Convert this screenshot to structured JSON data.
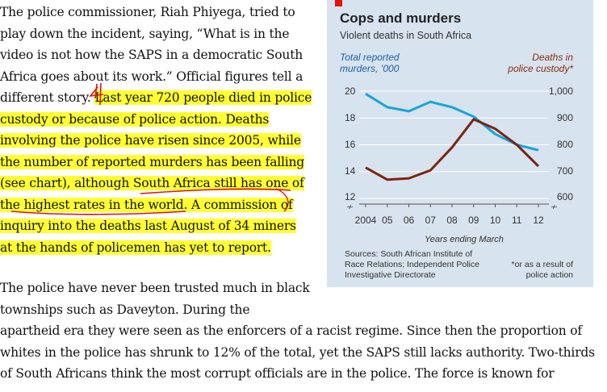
{
  "article": {
    "paragraph1_lines": [
      {
        "text": "The police commissioner, Riah Phiyega, tried to",
        "highlight": false
      },
      {
        "text": "play down the incident, saying, “What is in the",
        "highlight": false
      },
      {
        "text": "video is not how the SAPS in a democratic South",
        "highlight": false
      },
      {
        "text": "Africa goes about its work.” Official figures tell a",
        "highlight": false
      },
      {
        "text_plain": "different story. ",
        "text": "Last year 720 people died in police",
        "highlight": true
      },
      {
        "text": "custody or because of police action. Deaths",
        "highlight": true
      },
      {
        "text": "involving the police have risen since 2005, while",
        "highlight": true
      },
      {
        "text": "the number of reported murders has been falling",
        "highlight": true
      },
      {
        "text": "(see chart), although South Africa still has one of",
        "highlight": true
      },
      {
        "text_plain": "",
        "text": "the highest rates in the world.",
        "text_after": " A commission of",
        "highlight": true
      },
      {
        "text": "inquiry into the deaths last August of 34 miners",
        "highlight": true
      },
      {
        "text": "at the hands of policemen has yet to report.",
        "highlight": true
      }
    ],
    "paragraph2_lines": [
      "The police have never been trusted much in black",
      "townships such as Daveyton. During the",
      "apartheid era they were seen as the enforcers of a racist regime. Since then the proportion of",
      "whites in the police has shrunk to 12% of the total, yet the SAPS still lacks authority. Two-thirds",
      "of South Africans think the most corrupt officials are in the police. The force is known for"
    ],
    "highlight_color": "#ffff33",
    "annotation_color": "#e3120b"
  },
  "chart_data": {
    "type": "line",
    "title": "Cops and murders",
    "subtitle": "Violent deaths in South Africa",
    "x": [
      2004,
      2005,
      2006,
      2007,
      2008,
      2009,
      2010,
      2011,
      2012
    ],
    "x_tick_labels": [
      "2004",
      "05",
      "06",
      "07",
      "08",
      "09",
      "10",
      "11",
      "12"
    ],
    "xlabel": "Years ending March",
    "series": [
      {
        "name": "Total reported murders, ’000",
        "axis": "left",
        "color": "#1aa3d9",
        "x": [
          2004,
          2005,
          2006,
          2007,
          2008,
          2009,
          2010,
          2011,
          2012
        ],
        "values": [
          19.8,
          18.8,
          18.5,
          19.2,
          18.8,
          18.1,
          16.8,
          16.0,
          15.6
        ]
      },
      {
        "name": "Deaths in police custody*",
        "axis": "right",
        "color": "#7a2512",
        "x": [
          2004,
          2005,
          2006,
          2007,
          2008,
          2009,
          2010,
          2011,
          2012
        ],
        "values": [
          715,
          670,
          675,
          705,
          790,
          895,
          860,
          800,
          720
        ]
      }
    ],
    "left_axis": {
      "label_lines": [
        "Total reported",
        "murders, ’000"
      ],
      "ticks": [
        "20",
        "18",
        "16",
        "14",
        "12"
      ],
      "ylim": [
        12,
        20
      ]
    },
    "right_axis": {
      "label_lines": [
        "Deaths in",
        "police custody*"
      ],
      "ticks": [
        "1,000",
        "900",
        "800",
        "700",
        "600"
      ],
      "ylim": [
        600,
        1000
      ]
    },
    "source_lines": [
      "Sources: South African Institute of",
      "Race Relations; Independent Police",
      "Investigative Directorate"
    ],
    "footnote_lines": [
      "*or as a result of",
      "police action"
    ],
    "background": "#d7e3ee"
  }
}
